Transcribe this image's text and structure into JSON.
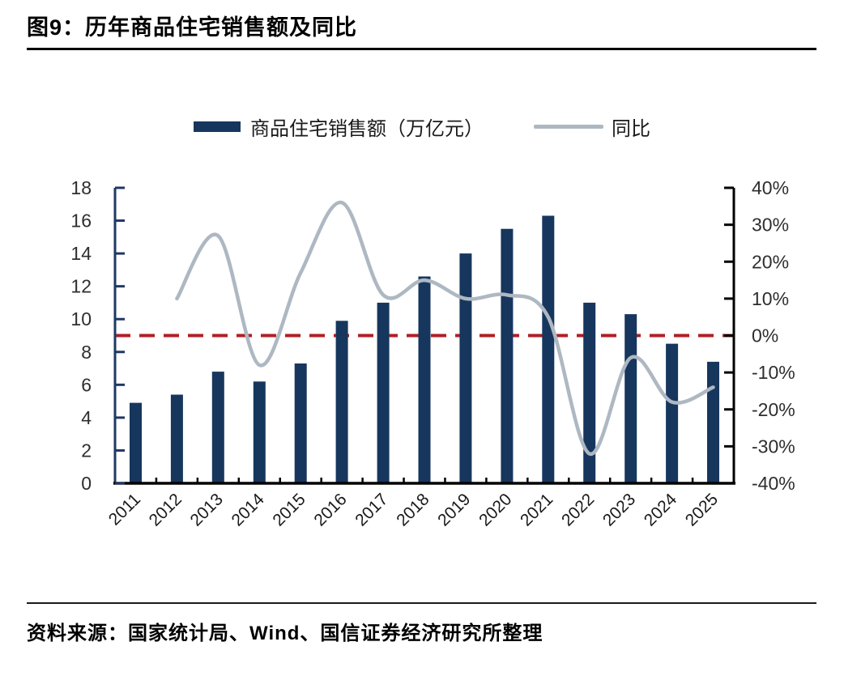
{
  "figure": {
    "title": "图9：历年商品住宅销售额及同比",
    "source": "资料来源：国家统计局、Wind、国信证券经济研究所整理"
  },
  "legend": {
    "bar_label": "商品住宅销售额（万亿元）",
    "line_label": "同比"
  },
  "colors": {
    "bar": "#17365d",
    "line": "#aeb8c2",
    "zero_line": "#b01f24",
    "left_axis": "#1f3864",
    "axis_black": "#000000",
    "tick_label": "#2e2e2e"
  },
  "chart_data": {
    "type": "bar",
    "subtype": "bar-line-combo",
    "title": "历年商品住宅销售额及同比",
    "categories": [
      "2011",
      "2012",
      "2013",
      "2014",
      "2015",
      "2016",
      "2017",
      "2018",
      "2019",
      "2020",
      "2021",
      "2022",
      "2023",
      "2024",
      "2025"
    ],
    "series": [
      {
        "name": "商品住宅销售额（万亿元）",
        "type": "bar",
        "axis": "left",
        "values": [
          4.9,
          5.4,
          6.8,
          6.2,
          7.3,
          9.9,
          11.0,
          12.6,
          14.0,
          15.5,
          16.3,
          11.0,
          10.3,
          8.5,
          7.4
        ]
      },
      {
        "name": "同比",
        "type": "line",
        "axis": "right",
        "unit": "%",
        "smoothed": true,
        "values": [
          null,
          10,
          27,
          -8,
          17,
          36,
          11,
          15,
          10,
          11,
          5,
          -32,
          -6,
          -18,
          -14
        ]
      }
    ],
    "left_axis": {
      "min": 0,
      "max": 18,
      "tick_step": 2,
      "ticks": [
        "0",
        "2",
        "4",
        "6",
        "8",
        "10",
        "12",
        "14",
        "16",
        "18"
      ]
    },
    "right_axis": {
      "min": -40,
      "max": 40,
      "tick_step": 10,
      "ticks_top_down": [
        "40%",
        "30%",
        "20%",
        "10%",
        "0%",
        "-10%",
        "-20%",
        "-30%",
        "-40%"
      ]
    },
    "reference_line": {
      "axis": "right",
      "value": 0,
      "style": "dashed",
      "color": "#b01f24"
    },
    "grid": false,
    "legend_position": "top-center"
  }
}
